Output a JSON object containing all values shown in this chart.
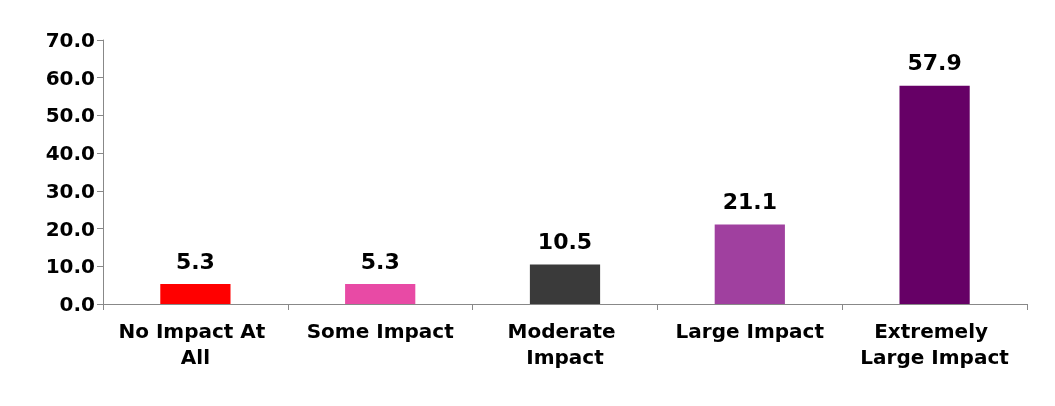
{
  "chart_data": {
    "type": "bar",
    "categories": [
      "No Impact At All",
      "Some Impact",
      "Moderate Impact",
      "Large Impact",
      "Extremely Large Impact"
    ],
    "values": [
      5.3,
      5.3,
      10.5,
      21.1,
      57.9
    ],
    "colors": [
      "#ff0000",
      "#e84aa5",
      "#3a3a3a",
      "#a0409f",
      "#660066"
    ],
    "ylim": [
      0,
      70
    ],
    "yticks": [
      {
        "value": 0,
        "label": "0.0"
      },
      {
        "value": 10,
        "label": "10.0"
      },
      {
        "value": 20,
        "label": "20.0"
      },
      {
        "value": 30,
        "label": "30.0"
      },
      {
        "value": 40,
        "label": "40.0"
      },
      {
        "value": 50,
        "label": "50.0"
      },
      {
        "value": 60,
        "label": "60.0"
      },
      {
        "value": 70,
        "label": "70.0"
      }
    ],
    "data_labels": true,
    "grid": false
  }
}
